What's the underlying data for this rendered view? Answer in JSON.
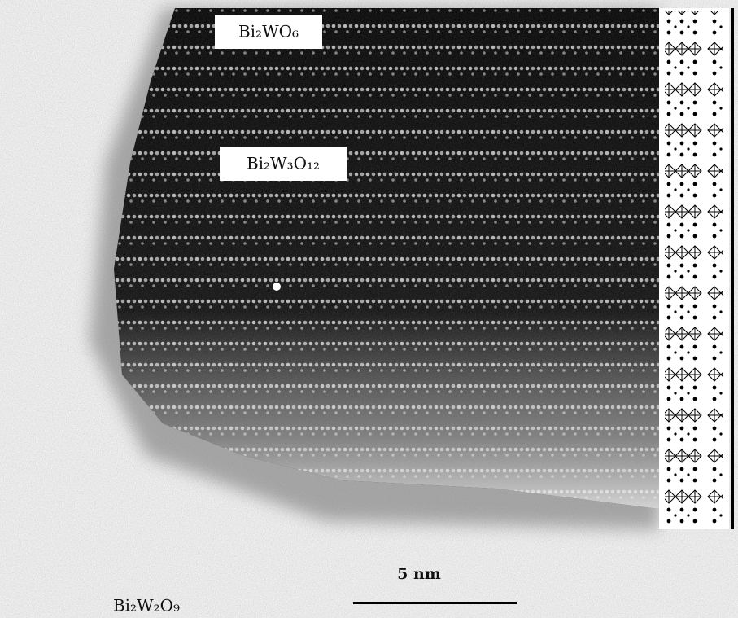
{
  "labels": {
    "top": "Bi₂WO₆",
    "middle": "Bi₂W₃O₁₂",
    "bottom": "Bi₂W₂O₉"
  },
  "scale_bar": {
    "label": "5 nm"
  }
}
